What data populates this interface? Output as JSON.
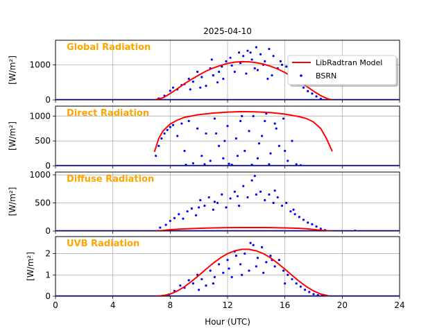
{
  "title": "2025-04-10",
  "xlabel": "Hour (UTC)",
  "colors": {
    "model": "#ff0000",
    "bsrn": "#0000ff",
    "panel_label": "#ffa500",
    "grid": "#b0b0b0"
  },
  "chart_data": [
    {
      "type": "scatter",
      "panel_label": "Global Radiation",
      "ylabel": "[W/m²]",
      "xlim": [
        0,
        24
      ],
      "ylim": [
        0,
        1700
      ],
      "xticks": [
        0,
        4,
        8,
        12,
        16,
        20,
        24
      ],
      "yticks": [
        0,
        1000
      ],
      "grid": true,
      "legend": {
        "position": "upper-right",
        "entries": [
          "LibRadtran Model",
          "BSRN"
        ]
      },
      "series": [
        {
          "name": "LibRadtran Model",
          "kind": "line",
          "x": [
            6.9,
            7.5,
            8,
            8.5,
            9,
            9.5,
            10,
            10.5,
            11,
            11.5,
            12,
            12.5,
            13,
            13.5,
            14,
            14.5,
            15,
            15.5,
            16,
            16.5,
            17,
            17.5,
            18,
            18.5,
            19,
            19.3
          ],
          "y": [
            0,
            60,
            180,
            320,
            460,
            590,
            710,
            820,
            910,
            980,
            1040,
            1075,
            1090,
            1085,
            1060,
            1020,
            960,
            880,
            780,
            660,
            530,
            390,
            250,
            120,
            30,
            0
          ]
        },
        {
          "name": "BSRN",
          "kind": "scatter",
          "x": [
            7.2,
            7.6,
            8.0,
            8.2,
            8.5,
            8.8,
            9.0,
            9.3,
            9.6,
            9.9,
            10.2,
            10.5,
            10.8,
            11.0,
            11.3,
            11.6,
            11.9,
            12.2,
            12.5,
            12.8,
            13.1,
            13.4,
            13.7,
            14.0,
            14.3,
            14.6,
            14.9,
            15.2,
            15.5,
            15.8,
            16.1,
            16.4,
            16.7,
            17.0,
            17.3,
            17.6,
            17.9,
            18.2,
            18.5,
            10.1,
            10.9,
            11.7,
            12.3,
            13.3,
            13.9,
            14.5,
            15.1,
            15.7,
            16.3,
            9.4,
            12.9,
            14.1,
            14.8,
            13.6,
            11.4
          ],
          "y": [
            40,
            120,
            260,
            350,
            300,
            420,
            450,
            600,
            520,
            800,
            650,
            400,
            900,
            700,
            500,
            950,
            1100,
            1200,
            800,
            1350,
            1250,
            1400,
            1150,
            1500,
            1300,
            1100,
            1450,
            1250,
            900,
            1000,
            950,
            700,
            600,
            450,
            350,
            250,
            180,
            100,
            30,
            350,
            1150,
            600,
            980,
            750,
            900,
            1000,
            700,
            1100,
            550,
            300,
            1050,
            850,
            600,
            1350,
            800
          ]
        }
      ]
    },
    {
      "type": "scatter",
      "panel_label": "Direct Radiation",
      "ylabel": "[W/m²]",
      "xlim": [
        0,
        24
      ],
      "ylim": [
        0,
        1200
      ],
      "xticks": [
        0,
        4,
        8,
        12,
        16,
        20,
        24
      ],
      "yticks": [
        0,
        500,
        1000
      ],
      "grid": true,
      "series": [
        {
          "name": "LibRadtran Model",
          "kind": "line",
          "x": [
            6.9,
            7.2,
            7.5,
            8,
            8.5,
            9,
            10,
            11,
            12,
            13,
            14,
            15,
            16,
            17,
            17.5,
            18,
            18.5,
            18.9,
            19.3
          ],
          "y": [
            280,
            550,
            700,
            840,
            920,
            975,
            1030,
            1060,
            1080,
            1090,
            1085,
            1070,
            1040,
            990,
            950,
            880,
            750,
            550,
            290
          ]
        },
        {
          "name": "BSRN",
          "kind": "scatter",
          "x": [
            7.0,
            7.2,
            7.4,
            7.6,
            7.8,
            8.0,
            8.2,
            8.5,
            8.8,
            9.0,
            9.3,
            9.6,
            9.9,
            10.2,
            10.5,
            10.8,
            11.1,
            11.4,
            11.7,
            12.0,
            12.3,
            12.6,
            12.9,
            13.2,
            13.5,
            13.8,
            14.1,
            14.4,
            14.7,
            15.0,
            15.3,
            15.6,
            15.9,
            16.2,
            16.5,
            16.8,
            17.1,
            9.1,
            10.4,
            11.2,
            12.1,
            13.0,
            13.7,
            14.2,
            14.9,
            15.4,
            16.0,
            11.8,
            12.7,
            14.6
          ],
          "y": [
            200,
            400,
            550,
            650,
            720,
            780,
            820,
            600,
            850,
            300,
            900,
            50,
            750,
            200,
            650,
            100,
            950,
            400,
            150,
            800,
            20,
            550,
            900,
            300,
            700,
            1000,
            150,
            600,
            1050,
            250,
            850,
            400,
            950,
            100,
            500,
            30,
            10,
            20,
            30,
            650,
            40,
            1000,
            20,
            450,
            30,
            750,
            300,
            500,
            200,
            900
          ]
        }
      ]
    },
    {
      "type": "scatter",
      "panel_label": "Diffuse Radiation",
      "ylabel": "[W/m²]",
      "xlim": [
        0,
        24
      ],
      "ylim": [
        0,
        1050
      ],
      "xticks": [
        0,
        4,
        8,
        12,
        16,
        20,
        24
      ],
      "yticks": [
        0,
        500,
        1000
      ],
      "grid": true,
      "series": [
        {
          "name": "LibRadtran Model",
          "kind": "line",
          "x": [
            6.9,
            7.5,
            8,
            9,
            10,
            11,
            12,
            13,
            14,
            15,
            16,
            17,
            17.5,
            18,
            18.5,
            19.3
          ],
          "y": [
            0,
            10,
            25,
            38,
            48,
            55,
            60,
            62,
            62,
            60,
            56,
            48,
            40,
            28,
            12,
            0
          ]
        },
        {
          "name": "BSRN",
          "kind": "scatter",
          "x": [
            7.3,
            7.7,
            8.0,
            8.3,
            8.6,
            8.9,
            9.2,
            9.5,
            9.8,
            10.1,
            10.4,
            10.7,
            11.0,
            11.3,
            11.6,
            11.9,
            12.2,
            12.5,
            12.8,
            13.1,
            13.4,
            13.7,
            14.0,
            14.3,
            14.6,
            14.9,
            15.2,
            15.5,
            15.8,
            16.1,
            16.4,
            16.7,
            17.0,
            17.3,
            17.6,
            17.9,
            18.2,
            18.5,
            18.8,
            20.9,
            10.0,
            11.1,
            12.7,
            13.9,
            15.3,
            16.6
          ],
          "y": [
            60,
            110,
            180,
            230,
            300,
            220,
            350,
            400,
            280,
            550,
            450,
            600,
            380,
            500,
            650,
            420,
            580,
            700,
            450,
            800,
            600,
            900,
            650,
            700,
            550,
            650,
            500,
            600,
            450,
            500,
            350,
            300,
            250,
            200,
            150,
            120,
            80,
            40,
            15,
            5,
            420,
            520,
            620,
            980,
            720,
            380
          ]
        }
      ]
    },
    {
      "type": "scatter",
      "panel_label": "UVB Radiation",
      "ylabel": "[W/m²]",
      "xlim": [
        0,
        24
      ],
      "ylim": [
        0,
        2.8
      ],
      "xticks": [
        0,
        4,
        8,
        12,
        16,
        20,
        24
      ],
      "xticklabels": [
        "0",
        "4",
        "8",
        "12",
        "16",
        "20",
        "24"
      ],
      "yticks": [
        0,
        1,
        2
      ],
      "grid": true,
      "series": [
        {
          "name": "LibRadtran Model",
          "kind": "line",
          "x": [
            7,
            7.5,
            8,
            8.5,
            9,
            9.5,
            10,
            10.5,
            11,
            11.5,
            12,
            12.5,
            13,
            13.5,
            14,
            14.5,
            15,
            15.5,
            16,
            16.5,
            17,
            17.5,
            18,
            18.5,
            19
          ],
          "y": [
            0,
            0.03,
            0.1,
            0.25,
            0.45,
            0.7,
            0.98,
            1.27,
            1.55,
            1.8,
            2.0,
            2.13,
            2.2,
            2.2,
            2.13,
            2.0,
            1.8,
            1.55,
            1.27,
            0.98,
            0.7,
            0.45,
            0.25,
            0.1,
            0.03
          ]
        },
        {
          "name": "BSRN",
          "kind": "scatter",
          "x": [
            7.5,
            7.9,
            8.3,
            8.7,
            9.0,
            9.3,
            9.6,
            9.9,
            10.2,
            10.5,
            10.8,
            11.1,
            11.4,
            11.7,
            12.0,
            12.3,
            12.6,
            12.9,
            13.2,
            13.5,
            13.8,
            14.1,
            14.4,
            14.7,
            15.0,
            15.3,
            15.6,
            15.9,
            16.2,
            16.5,
            16.8,
            17.1,
            17.4,
            17.7,
            18.0,
            18.3,
            18.6,
            10.0,
            11.0,
            12.1,
            13.0,
            14.0,
            15.1,
            16.0,
            12.5,
            13.6,
            14.5
          ],
          "y": [
            0.02,
            0.08,
            0.25,
            0.5,
            0.4,
            0.75,
            0.6,
            1.0,
            0.8,
            0.5,
            1.2,
            0.9,
            1.5,
            1.1,
            1.7,
            0.9,
            1.9,
            1.5,
            2.0,
            1.2,
            2.4,
            1.8,
            2.3,
            1.6,
            1.9,
            1.4,
            1.7,
            1.2,
            1.0,
            0.8,
            0.6,
            0.45,
            0.3,
            0.2,
            0.1,
            0.05,
            0.02,
            0.3,
            0.6,
            1.3,
            1.0,
            1.4,
            1.7,
            0.6,
            2.1,
            2.5,
            1.1
          ]
        }
      ]
    }
  ]
}
